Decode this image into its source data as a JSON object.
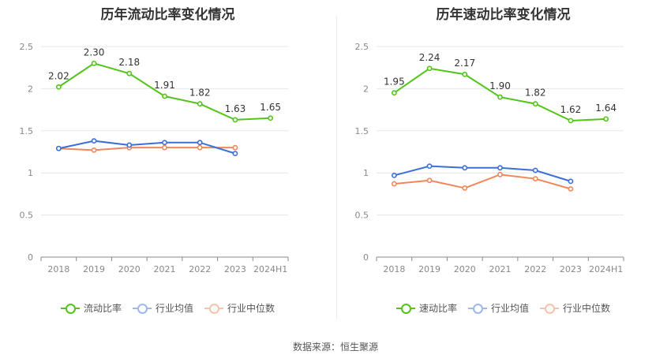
{
  "source_text": "数据来源：恒生聚源",
  "chart_data": [
    {
      "type": "line",
      "title": "历年流动比率变化情况",
      "categories": [
        "2018",
        "2019",
        "2020",
        "2021",
        "2022",
        "2023",
        "2024H1"
      ],
      "ylim": [
        0,
        2.5
      ],
      "yticks": [
        "0",
        "0.5",
        "1",
        "1.5",
        "2",
        "2.5"
      ],
      "grid": true,
      "legend_position": "bottom",
      "series": [
        {
          "name": "流动比率",
          "color": "#52c41a",
          "values": [
            2.02,
            2.3,
            2.18,
            1.91,
            1.82,
            1.63,
            1.65
          ],
          "labels": [
            "2.02",
            "2.30",
            "2.18",
            "1.91",
            "1.82",
            "1.63",
            "1.65"
          ]
        },
        {
          "name": "行业均值",
          "color": "#3b6fd8",
          "values": [
            1.29,
            1.38,
            1.33,
            1.36,
            1.36,
            1.23,
            null
          ],
          "labels": []
        },
        {
          "name": "行业中位数",
          "color": "#f0875a",
          "values": [
            1.29,
            1.27,
            1.3,
            1.3,
            1.3,
            1.3,
            null
          ],
          "labels": []
        }
      ]
    },
    {
      "type": "line",
      "title": "历年速动比率变化情况",
      "categories": [
        "2018",
        "2019",
        "2020",
        "2021",
        "2022",
        "2023",
        "2024H1"
      ],
      "ylim": [
        0,
        2.5
      ],
      "yticks": [
        "0",
        "0.5",
        "1",
        "1.5",
        "2",
        "2.5"
      ],
      "grid": true,
      "legend_position": "bottom",
      "series": [
        {
          "name": "速动比率",
          "color": "#52c41a",
          "values": [
            1.95,
            2.24,
            2.17,
            1.9,
            1.82,
            1.62,
            1.64
          ],
          "labels": [
            "1.95",
            "2.24",
            "2.17",
            "1.90",
            "1.82",
            "1.62",
            "1.64"
          ]
        },
        {
          "name": "行业均值",
          "color": "#3b6fd8",
          "values": [
            0.97,
            1.08,
            1.06,
            1.06,
            1.03,
            0.9,
            null
          ],
          "labels": []
        },
        {
          "name": "行业中位数",
          "color": "#f0875a",
          "values": [
            0.87,
            0.91,
            0.82,
            0.98,
            0.93,
            0.81,
            null
          ],
          "labels": []
        }
      ]
    }
  ]
}
